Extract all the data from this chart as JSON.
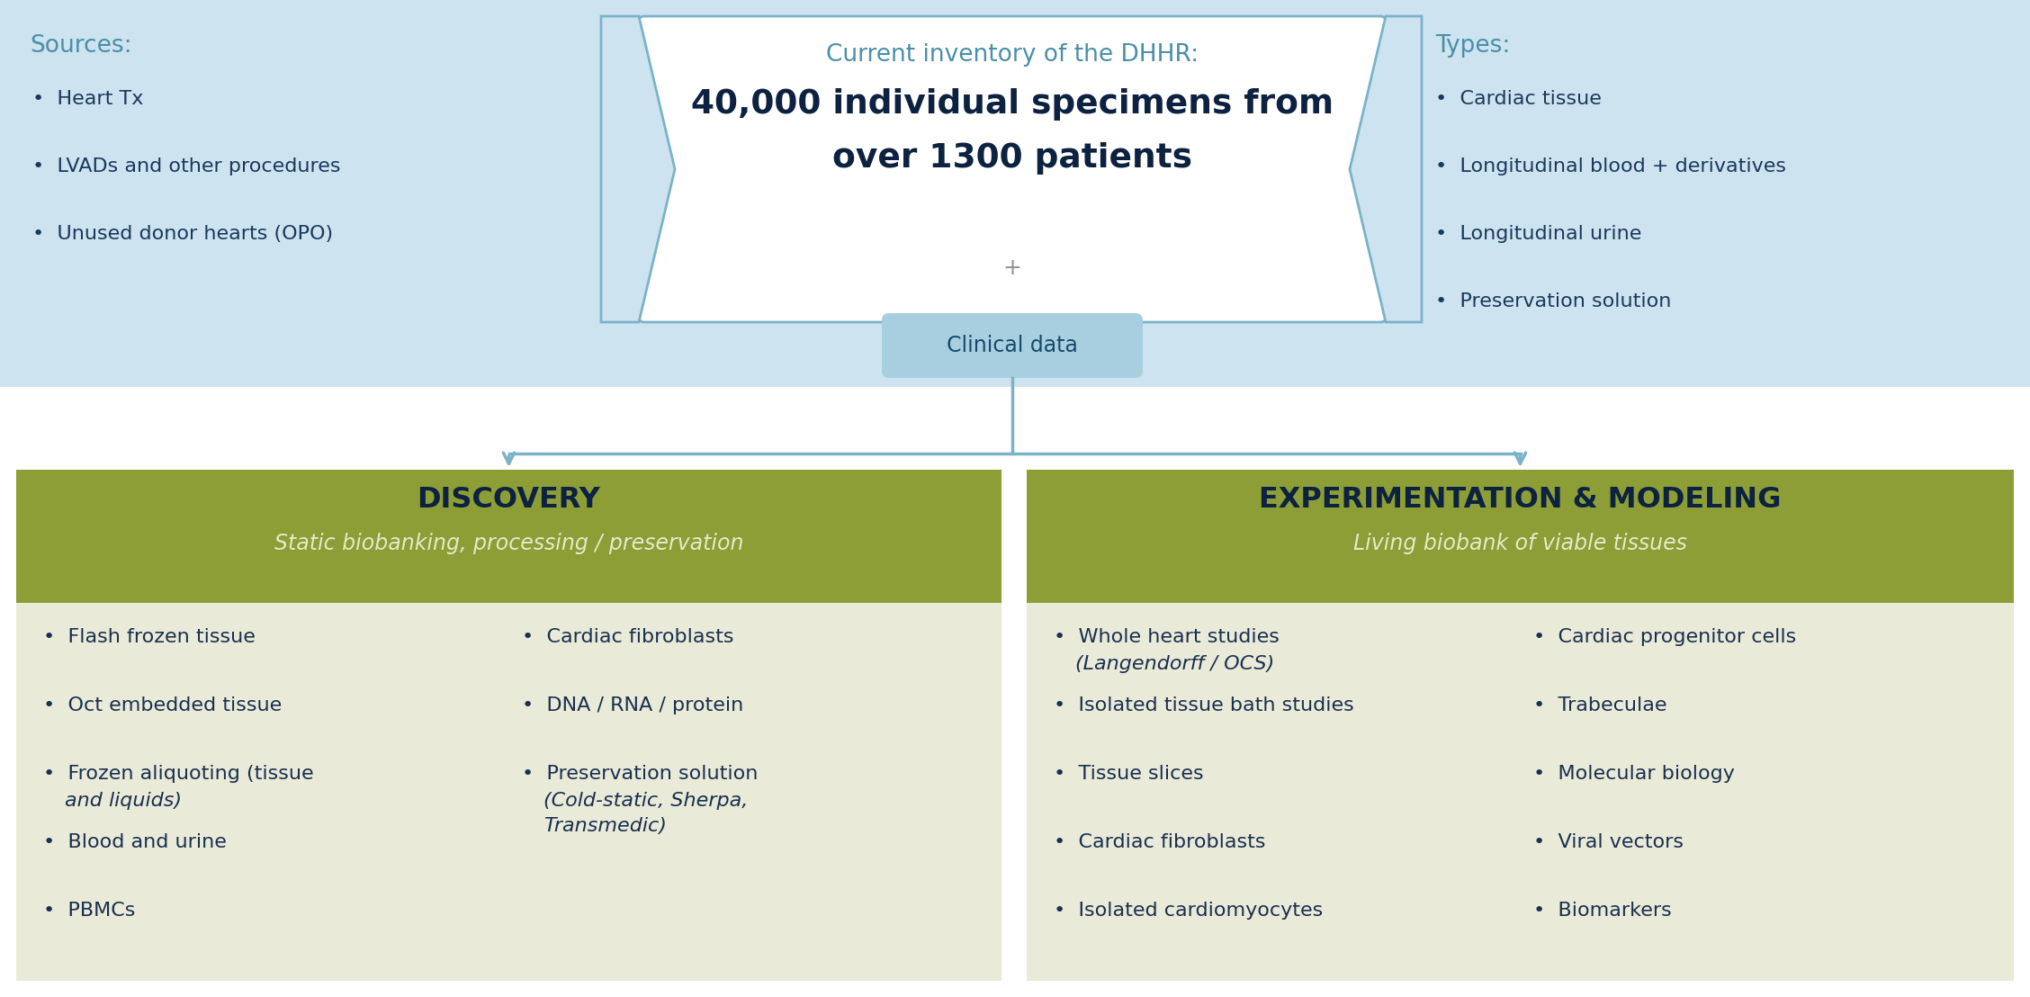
{
  "bg_color": "#ffffff",
  "top_panel_bg": "#cde3ef",
  "center_box_bg": "#ffffff",
  "center_box_border": "#7ab3c8",
  "clinical_box_bg": "#a8cfe0",
  "arrow_color": "#7ab3c8",
  "discovery_header_bg": "#8c9e35",
  "discovery_body_bg": "#eaead8",
  "exp_header_bg": "#8c9e35",
  "exp_body_bg": "#eaead8",
  "sources_title_color": "#4a8fa8",
  "sources_text_color": "#1a3a5c",
  "types_title_color": "#4a8fa8",
  "types_text_color": "#1a3a5c",
  "center_title_color": "#4a8fa8",
  "center_bold_color": "#0d2240",
  "clinical_text_color": "#1a4a6a",
  "header_text_color": "#0d2240",
  "body_text_color": "#1a3050",
  "header_italic_color": "#e8e8c8",
  "sources_title": "Sources:",
  "sources_items": [
    "Heart Tx",
    "LVADs and other procedures",
    "Unused donor hearts (OPO)"
  ],
  "types_title": "Types:",
  "types_items": [
    "Cardiac tissue",
    "Longitudinal blood + derivatives",
    "Longitudinal urine",
    "Preservation solution"
  ],
  "center_line1": "Current inventory of the DHHR:",
  "center_line2": "40,000 individual specimens from",
  "center_line3": "over 1300 patients",
  "center_plus": "+",
  "clinical_label": "Clinical data",
  "discovery_title": "DISCOVERY",
  "discovery_subtitle": "Static biobanking, processing / preservation",
  "discovery_col1": [
    "Flash frozen tissue",
    "Oct embedded tissue",
    "Frozen aliquoting (tissue\nand liquids)",
    "Blood and urine",
    "PBMCs"
  ],
  "discovery_col2": [
    "Cardiac fibroblasts",
    "DNA / RNA / protein",
    "Preservation solution\n(Cold-static, Sherpa,\nTransmedic)"
  ],
  "exp_title": "EXPERIMENTATION & MODELING",
  "exp_subtitle": "Living biobank of viable tissues",
  "exp_col1": [
    "Whole heart studies\n(Langendorff / OCS)",
    "Isolated tissue bath studies",
    "Tissue slices",
    "Cardiac fibroblasts",
    "Isolated cardiomyocytes"
  ],
  "exp_col2": [
    "Cardiac progenitor cells",
    "Trabeculae",
    "Molecular biology",
    "Viral vectors",
    "Biomarkers"
  ]
}
